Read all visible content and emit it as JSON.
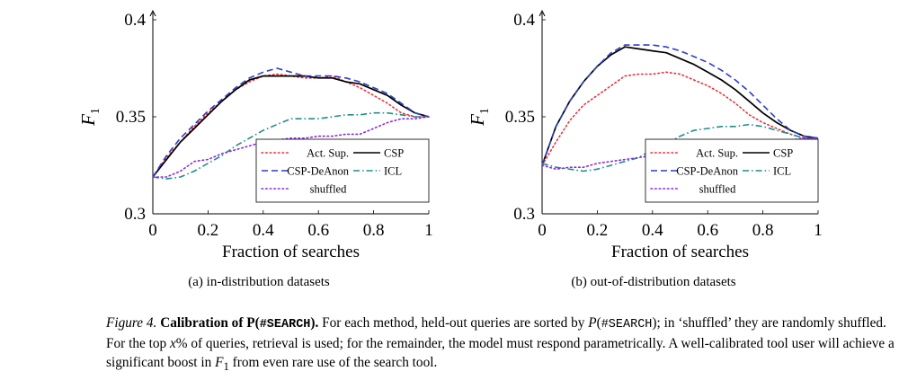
{
  "chart_data": [
    {
      "type": "line",
      "caption": "(a) in-distribution datasets",
      "xlabel": "Fraction of searches",
      "ylabel": "F",
      "ylabel_sub": "1",
      "xlim": [
        0,
        1
      ],
      "ylim": [
        0.3,
        0.4
      ],
      "xticks": [
        "0",
        "0.2",
        "0.4",
        "0.6",
        "0.8",
        "1"
      ],
      "yticks": [
        "0.3",
        "0.35",
        "0.4"
      ],
      "legend": "bottom-right",
      "series": [
        {
          "name": "Act. Sup.",
          "color": "#e8333a",
          "dash": "dotted",
          "x": [
            0,
            0.05,
            0.1,
            0.15,
            0.2,
            0.25,
            0.3,
            0.35,
            0.4,
            0.45,
            0.5,
            0.55,
            0.6,
            0.65,
            0.7,
            0.75,
            0.8,
            0.85,
            0.9,
            0.95,
            1
          ],
          "y": [
            0.319,
            0.329,
            0.337,
            0.345,
            0.352,
            0.358,
            0.364,
            0.368,
            0.371,
            0.372,
            0.371,
            0.37,
            0.37,
            0.371,
            0.368,
            0.365,
            0.361,
            0.357,
            0.352,
            0.35,
            0.35
          ]
        },
        {
          "name": "CSP",
          "color": "#000000",
          "dash": "solid",
          "x": [
            0,
            0.05,
            0.1,
            0.15,
            0.2,
            0.25,
            0.3,
            0.35,
            0.4,
            0.45,
            0.5,
            0.55,
            0.6,
            0.65,
            0.7,
            0.75,
            0.8,
            0.85,
            0.9,
            0.95,
            1
          ],
          "y": [
            0.319,
            0.328,
            0.337,
            0.344,
            0.351,
            0.358,
            0.364,
            0.369,
            0.371,
            0.371,
            0.371,
            0.371,
            0.37,
            0.37,
            0.368,
            0.367,
            0.364,
            0.361,
            0.356,
            0.352,
            0.35
          ]
        },
        {
          "name": "CSP-DeAnon",
          "color": "#2b3fc4",
          "dash": "dashed",
          "x": [
            0,
            0.05,
            0.1,
            0.15,
            0.2,
            0.25,
            0.3,
            0.35,
            0.4,
            0.45,
            0.5,
            0.55,
            0.6,
            0.65,
            0.7,
            0.75,
            0.8,
            0.85,
            0.9,
            0.95,
            1
          ],
          "y": [
            0.319,
            0.33,
            0.339,
            0.346,
            0.353,
            0.359,
            0.365,
            0.37,
            0.373,
            0.375,
            0.373,
            0.371,
            0.371,
            0.371,
            0.37,
            0.368,
            0.365,
            0.362,
            0.357,
            0.352,
            0.35
          ]
        },
        {
          "name": "ICL",
          "color": "#1f8f8a",
          "dash": "dashdot",
          "x": [
            0,
            0.05,
            0.1,
            0.15,
            0.2,
            0.25,
            0.3,
            0.35,
            0.4,
            0.45,
            0.5,
            0.55,
            0.6,
            0.65,
            0.7,
            0.75,
            0.8,
            0.85,
            0.9,
            0.95,
            1
          ],
          "y": [
            0.319,
            0.318,
            0.319,
            0.322,
            0.326,
            0.33,
            0.335,
            0.339,
            0.343,
            0.346,
            0.349,
            0.349,
            0.349,
            0.35,
            0.351,
            0.351,
            0.352,
            0.352,
            0.351,
            0.35,
            0.35
          ]
        },
        {
          "name": "shuffled",
          "color": "#8a2be2",
          "dash": "dotted",
          "x": [
            0,
            0.05,
            0.1,
            0.15,
            0.2,
            0.25,
            0.3,
            0.35,
            0.4,
            0.45,
            0.5,
            0.55,
            0.6,
            0.65,
            0.7,
            0.75,
            0.8,
            0.85,
            0.9,
            0.95,
            1
          ],
          "y": [
            0.319,
            0.319,
            0.322,
            0.327,
            0.328,
            0.331,
            0.333,
            0.335,
            0.337,
            0.338,
            0.339,
            0.339,
            0.34,
            0.34,
            0.341,
            0.341,
            0.344,
            0.347,
            0.349,
            0.349,
            0.35
          ]
        }
      ]
    },
    {
      "type": "line",
      "caption": "(b) out-of-distribution datasets",
      "xlabel": "Fraction of searches",
      "ylabel": "F",
      "ylabel_sub": "1",
      "xlim": [
        0,
        1
      ],
      "ylim": [
        0.3,
        0.4
      ],
      "xticks": [
        "0",
        "0.2",
        "0.4",
        "0.6",
        "0.8",
        "1"
      ],
      "yticks": [
        "0.3",
        "0.35",
        "0.4"
      ],
      "legend": "bottom-right",
      "series": [
        {
          "name": "Act. Sup.",
          "color": "#e8333a",
          "dash": "dotted",
          "x": [
            0,
            0.05,
            0.1,
            0.15,
            0.2,
            0.25,
            0.3,
            0.35,
            0.4,
            0.45,
            0.5,
            0.55,
            0.6,
            0.65,
            0.7,
            0.75,
            0.8,
            0.85,
            0.9,
            0.95,
            1
          ],
          "y": [
            0.325,
            0.337,
            0.348,
            0.356,
            0.361,
            0.366,
            0.371,
            0.372,
            0.372,
            0.373,
            0.372,
            0.369,
            0.366,
            0.362,
            0.357,
            0.351,
            0.347,
            0.344,
            0.341,
            0.339,
            0.339
          ]
        },
        {
          "name": "CSP",
          "color": "#000000",
          "dash": "solid",
          "x": [
            0,
            0.05,
            0.1,
            0.15,
            0.2,
            0.25,
            0.3,
            0.35,
            0.4,
            0.45,
            0.5,
            0.55,
            0.6,
            0.65,
            0.7,
            0.75,
            0.8,
            0.85,
            0.9,
            0.95,
            1
          ],
          "y": [
            0.325,
            0.345,
            0.358,
            0.368,
            0.376,
            0.382,
            0.386,
            0.385,
            0.384,
            0.383,
            0.38,
            0.377,
            0.373,
            0.369,
            0.364,
            0.358,
            0.352,
            0.347,
            0.343,
            0.34,
            0.339
          ]
        },
        {
          "name": "CSP-DeAnon",
          "color": "#2b3fc4",
          "dash": "dashed",
          "x": [
            0,
            0.05,
            0.1,
            0.15,
            0.2,
            0.25,
            0.3,
            0.35,
            0.4,
            0.45,
            0.5,
            0.55,
            0.6,
            0.65,
            0.7,
            0.75,
            0.8,
            0.85,
            0.9,
            0.95,
            1
          ],
          "y": [
            0.325,
            0.345,
            0.358,
            0.368,
            0.376,
            0.383,
            0.387,
            0.387,
            0.387,
            0.386,
            0.384,
            0.381,
            0.378,
            0.374,
            0.369,
            0.363,
            0.356,
            0.349,
            0.343,
            0.34,
            0.339
          ]
        },
        {
          "name": "ICL",
          "color": "#1f8f8a",
          "dash": "dashdot",
          "x": [
            0,
            0.05,
            0.1,
            0.15,
            0.2,
            0.25,
            0.3,
            0.35,
            0.4,
            0.45,
            0.5,
            0.55,
            0.6,
            0.65,
            0.7,
            0.75,
            0.8,
            0.85,
            0.9,
            0.95,
            1
          ],
          "y": [
            0.326,
            0.324,
            0.323,
            0.322,
            0.323,
            0.325,
            0.327,
            0.329,
            0.333,
            0.336,
            0.34,
            0.343,
            0.344,
            0.345,
            0.345,
            0.346,
            0.345,
            0.343,
            0.341,
            0.339,
            0.339
          ]
        },
        {
          "name": "shuffled",
          "color": "#8a2be2",
          "dash": "dotted",
          "x": [
            0,
            0.05,
            0.1,
            0.15,
            0.2,
            0.25,
            0.3,
            0.35,
            0.4,
            0.45,
            0.5,
            0.55,
            0.6,
            0.65,
            0.7,
            0.75,
            0.8,
            0.85,
            0.9,
            0.95,
            1
          ],
          "y": [
            0.325,
            0.323,
            0.324,
            0.324,
            0.326,
            0.327,
            0.328,
            0.329,
            0.33,
            0.33,
            0.331,
            0.332,
            0.334,
            0.335,
            0.336,
            0.337,
            0.338,
            0.338,
            0.338,
            0.339,
            0.339
          ]
        }
      ]
    }
  ],
  "caption": {
    "figure_label": "Figure 4.",
    "title_prefix": "Calibration of P(",
    "title_token": "#SEARCH",
    "title_suffix": ").",
    "sentence1_a": "For each method, held-out queries are sorted by ",
    "p_symbol": "P",
    "p_open": "(",
    "p_token": "#SEARCH",
    "p_close": ")",
    "sentence1_b": "; in ‘shuffled’ they are randomly shuffled. For the top ",
    "x_symbol": "x",
    "sentence2": "% of queries, retrieval is used; for the remainder, the model must respond parametrically. A well-calibrated tool user will achieve a significant boost in ",
    "f_symbol": "F",
    "f_sub": "1",
    "sentence3": " from even rare use of the search tool."
  }
}
